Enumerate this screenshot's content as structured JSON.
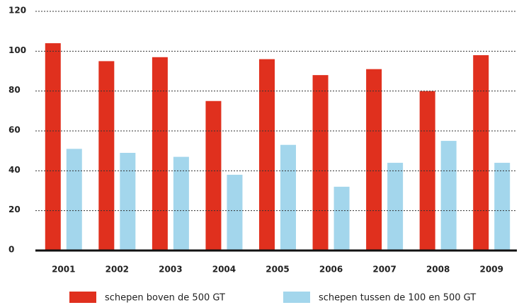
{
  "chart_data": {
    "type": "bar",
    "categories": [
      "2001",
      "2002",
      "2003",
      "2004",
      "2005",
      "2006",
      "2007",
      "2008",
      "2009"
    ],
    "series": [
      {
        "name": "schepen boven de 500 GT",
        "color": "#e0301e",
        "values": [
          104,
          95,
          97,
          75,
          96,
          88,
          91,
          80,
          98
        ]
      },
      {
        "name": "schepen tussen de 100 en 500 GT",
        "color": "#a3d6ec",
        "values": [
          51,
          49,
          47,
          38,
          53,
          32,
          44,
          55,
          44
        ]
      }
    ],
    "ylim": [
      0,
      120
    ],
    "yticks": [
      0,
      20,
      40,
      60,
      80,
      100,
      120
    ],
    "grid": true
  }
}
